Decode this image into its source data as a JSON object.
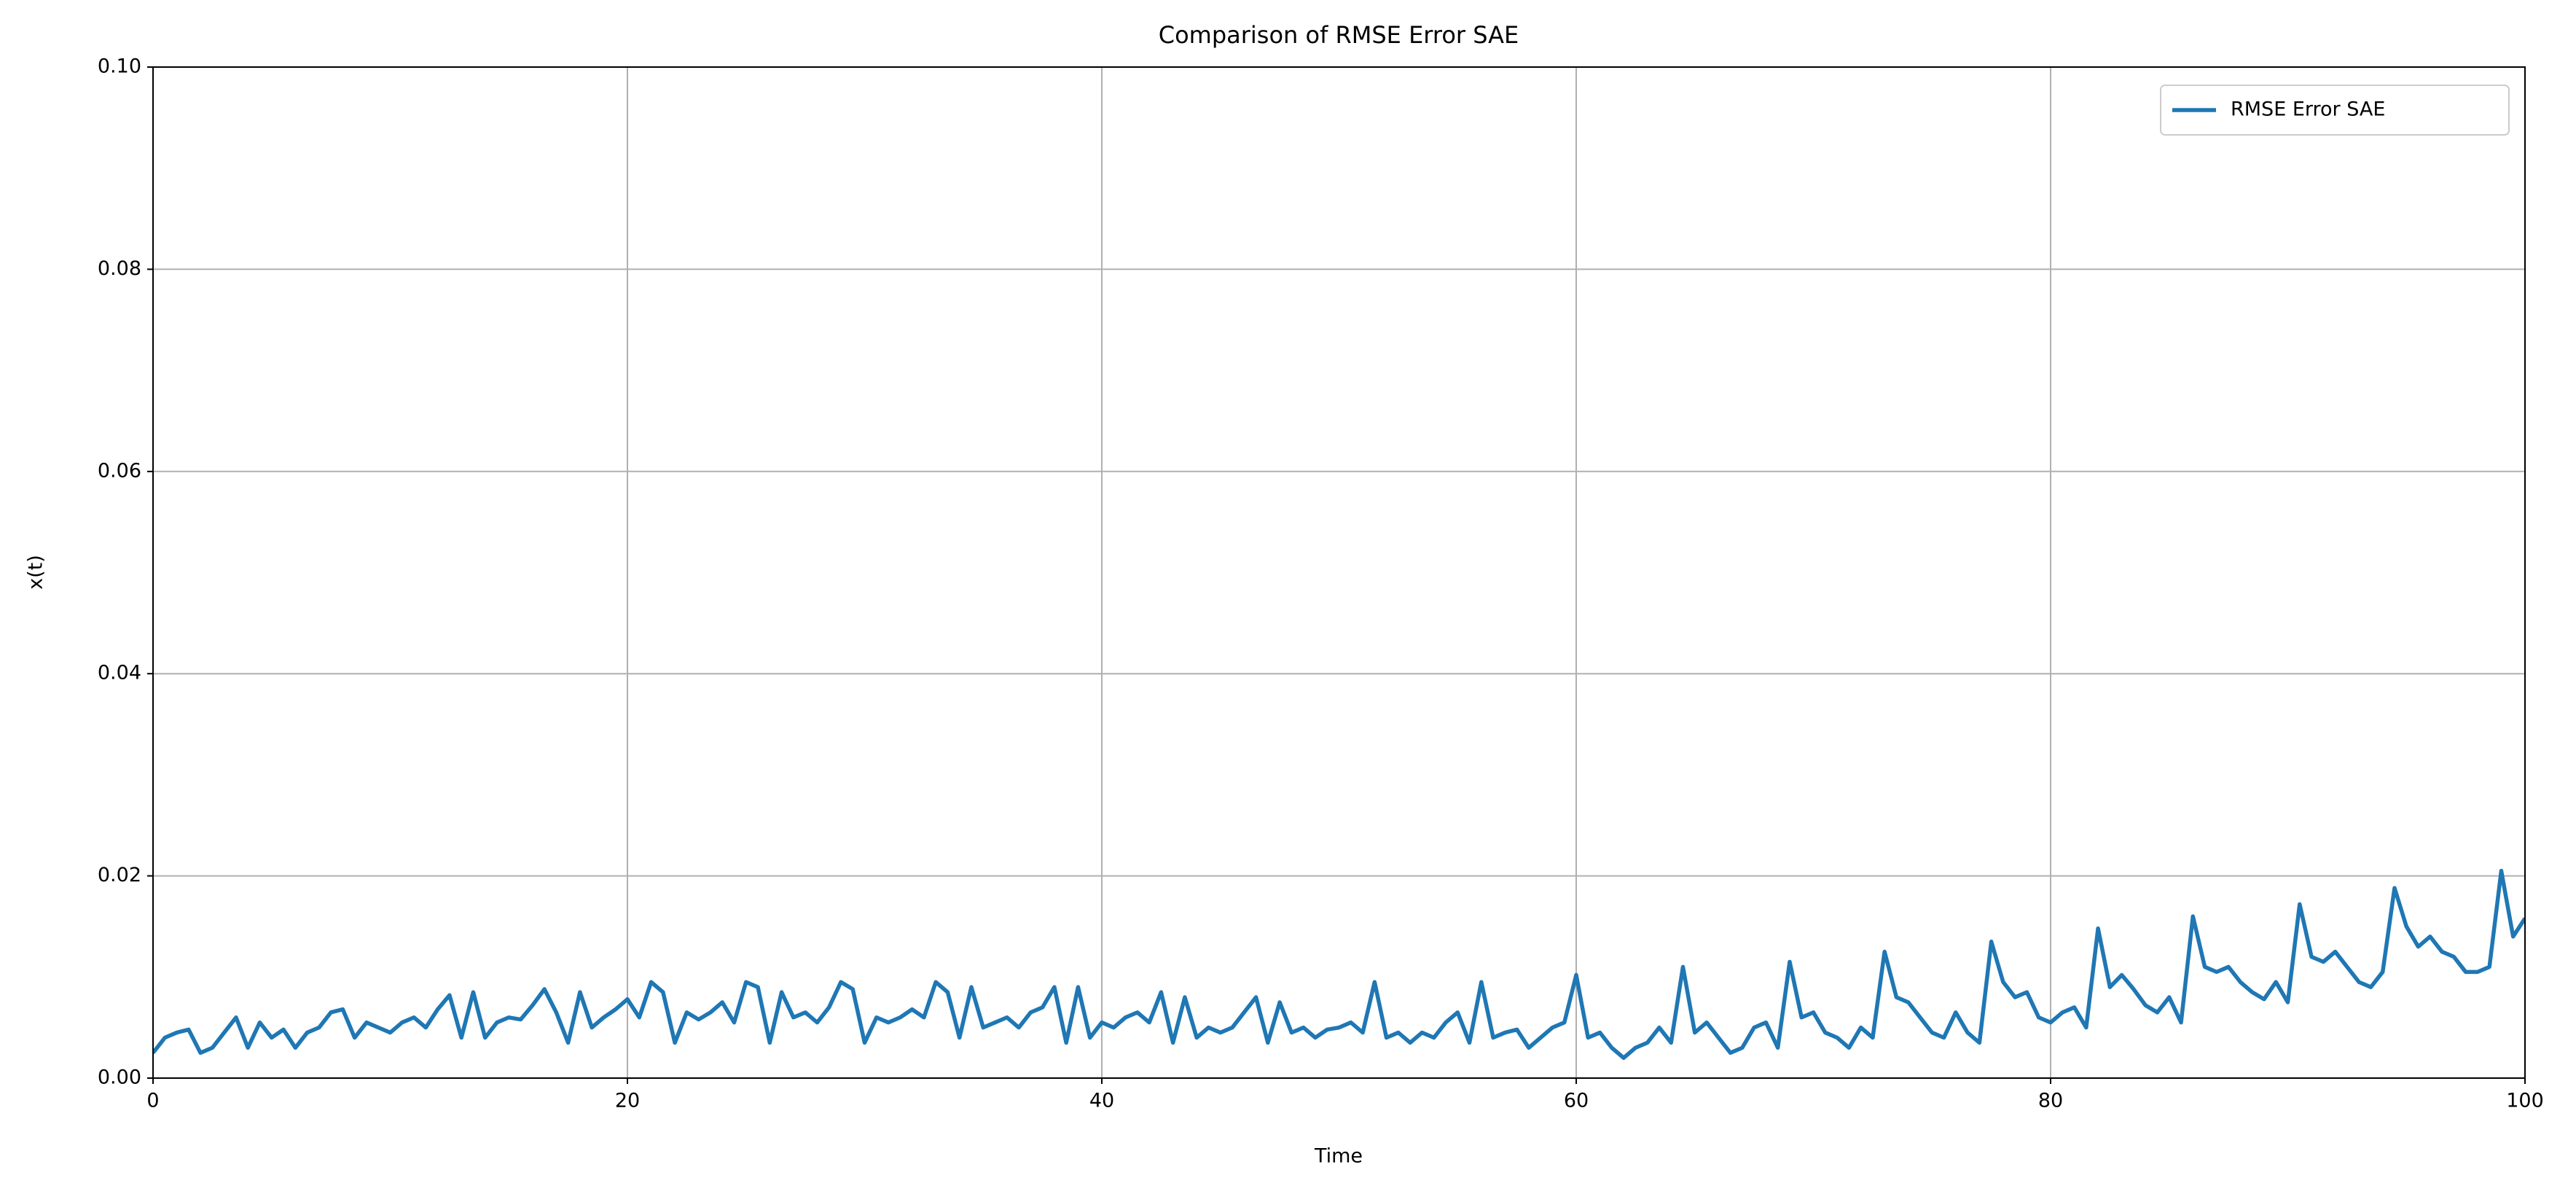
{
  "chart_data": {
    "type": "line",
    "title": "Comparison of RMSE Error SAE",
    "x_label": "Time",
    "y_label": "x(t)",
    "x": [
      0,
      0.5,
      1,
      1.5,
      2,
      2.5,
      3,
      3.5,
      4,
      4.5,
      5,
      5.5,
      6,
      6.5,
      7,
      7.5,
      8,
      8.5,
      9,
      9.5,
      10,
      10.5,
      11,
      11.5,
      12,
      12.5,
      13,
      13.5,
      14,
      14.5,
      15,
      15.5,
      16,
      16.5,
      17,
      17.5,
      18,
      18.5,
      19,
      19.5,
      20,
      20.5,
      21,
      21.5,
      22,
      22.5,
      23,
      23.5,
      24,
      24.5,
      25,
      25.5,
      26,
      26.5,
      27,
      27.5,
      28,
      28.5,
      29,
      29.5,
      30,
      30.5,
      31,
      31.5,
      32,
      32.5,
      33,
      33.5,
      34,
      34.5,
      35,
      35.5,
      36,
      36.5,
      37,
      37.5,
      38,
      38.5,
      39,
      39.5,
      40,
      40.5,
      41,
      41.5,
      42,
      42.5,
      43,
      43.5,
      44,
      44.5,
      45,
      45.5,
      46,
      46.5,
      47,
      47.5,
      48,
      48.5,
      49,
      49.5,
      50,
      50.5,
      51,
      51.5,
      52,
      52.5,
      53,
      53.5,
      54,
      54.5,
      55,
      55.5,
      56,
      56.5,
      57,
      57.5,
      58,
      58.5,
      59,
      59.5,
      60,
      60.5,
      61,
      61.5,
      62,
      62.5,
      63,
      63.5,
      64,
      64.5,
      65,
      65.5,
      66,
      66.5,
      67,
      67.5,
      68,
      68.5,
      69,
      69.5,
      70,
      70.5,
      71,
      71.5,
      72,
      72.5,
      73,
      73.5,
      74,
      74.5,
      75,
      75.5,
      76,
      76.5,
      77,
      77.5,
      78,
      78.5,
      79,
      79.5,
      80,
      80.5,
      81,
      81.5,
      82,
      82.5,
      83,
      83.5,
      84,
      84.5,
      85,
      85.5,
      86,
      86.5,
      87,
      87.5,
      88,
      88.5,
      89,
      89.5,
      90,
      90.5,
      91,
      91.5,
      92,
      92.5,
      93,
      93.5,
      94,
      94.5,
      95,
      95.5,
      96,
      96.5,
      97,
      97.5,
      98,
      98.5,
      99,
      99.5,
      100
    ],
    "series": [
      {
        "name": "RMSE Error SAE",
        "color": "#1f77b4",
        "values": [
          0.0025,
          0.004,
          0.0045,
          0.0048,
          0.0025,
          0.003,
          0.0045,
          0.006,
          0.003,
          0.0055,
          0.004,
          0.0048,
          0.003,
          0.0045,
          0.005,
          0.0065,
          0.0068,
          0.004,
          0.0055,
          0.005,
          0.0045,
          0.0055,
          0.006,
          0.005,
          0.0068,
          0.0082,
          0.004,
          0.0085,
          0.004,
          0.0055,
          0.006,
          0.0058,
          0.0072,
          0.0088,
          0.0065,
          0.0035,
          0.0085,
          0.005,
          0.006,
          0.0068,
          0.0078,
          0.006,
          0.0095,
          0.0085,
          0.0035,
          0.0065,
          0.0058,
          0.0065,
          0.0075,
          0.0055,
          0.0095,
          0.009,
          0.0035,
          0.0085,
          0.006,
          0.0065,
          0.0055,
          0.007,
          0.0095,
          0.0088,
          0.0035,
          0.006,
          0.0055,
          0.006,
          0.0068,
          0.006,
          0.0095,
          0.0085,
          0.004,
          0.009,
          0.005,
          0.0055,
          0.006,
          0.005,
          0.0065,
          0.007,
          0.009,
          0.0035,
          0.009,
          0.004,
          0.0055,
          0.005,
          0.006,
          0.0065,
          0.0055,
          0.0085,
          0.0035,
          0.008,
          0.004,
          0.005,
          0.0045,
          0.005,
          0.0065,
          0.008,
          0.0035,
          0.0075,
          0.0045,
          0.005,
          0.004,
          0.0048,
          0.005,
          0.0055,
          0.0045,
          0.0095,
          0.004,
          0.0045,
          0.0035,
          0.0045,
          0.004,
          0.0055,
          0.0065,
          0.0035,
          0.0095,
          0.004,
          0.0045,
          0.0048,
          0.003,
          0.004,
          0.005,
          0.0055,
          0.0102,
          0.004,
          0.0045,
          0.003,
          0.002,
          0.003,
          0.0035,
          0.005,
          0.0035,
          0.011,
          0.0045,
          0.0055,
          0.004,
          0.0025,
          0.003,
          0.005,
          0.0055,
          0.003,
          0.0115,
          0.006,
          0.0065,
          0.0045,
          0.004,
          0.003,
          0.005,
          0.004,
          0.0125,
          0.008,
          0.0075,
          0.006,
          0.0045,
          0.004,
          0.0065,
          0.0045,
          0.0035,
          0.0135,
          0.0095,
          0.008,
          0.0085,
          0.006,
          0.0055,
          0.0065,
          0.007,
          0.005,
          0.0148,
          0.009,
          0.0102,
          0.0088,
          0.0072,
          0.0065,
          0.008,
          0.0055,
          0.016,
          0.011,
          0.0105,
          0.011,
          0.0095,
          0.0085,
          0.0078,
          0.0095,
          0.0075,
          0.0172,
          0.012,
          0.0115,
          0.0125,
          0.011,
          0.0095,
          0.009,
          0.0105,
          0.0188,
          0.015,
          0.013,
          0.014,
          0.0125,
          0.012,
          0.0105,
          0.0105,
          0.011,
          0.0205,
          0.014,
          0.0158
        ]
      }
    ],
    "xlim": [
      0,
      100
    ],
    "xticks": [
      0,
      20,
      40,
      60,
      80,
      100
    ],
    "ylim": [
      0,
      0.1
    ],
    "yticks": [
      {
        "value": 0,
        "label": "0.00"
      },
      {
        "value": 0.02,
        "label": "0.02"
      },
      {
        "value": 0.04,
        "label": "0.04"
      },
      {
        "value": 0.06,
        "label": "0.06"
      },
      {
        "value": 0.08,
        "label": "0.08"
      },
      {
        "value": 0.1,
        "label": "0.10"
      }
    ],
    "grid": true,
    "legend": "upper right"
  }
}
